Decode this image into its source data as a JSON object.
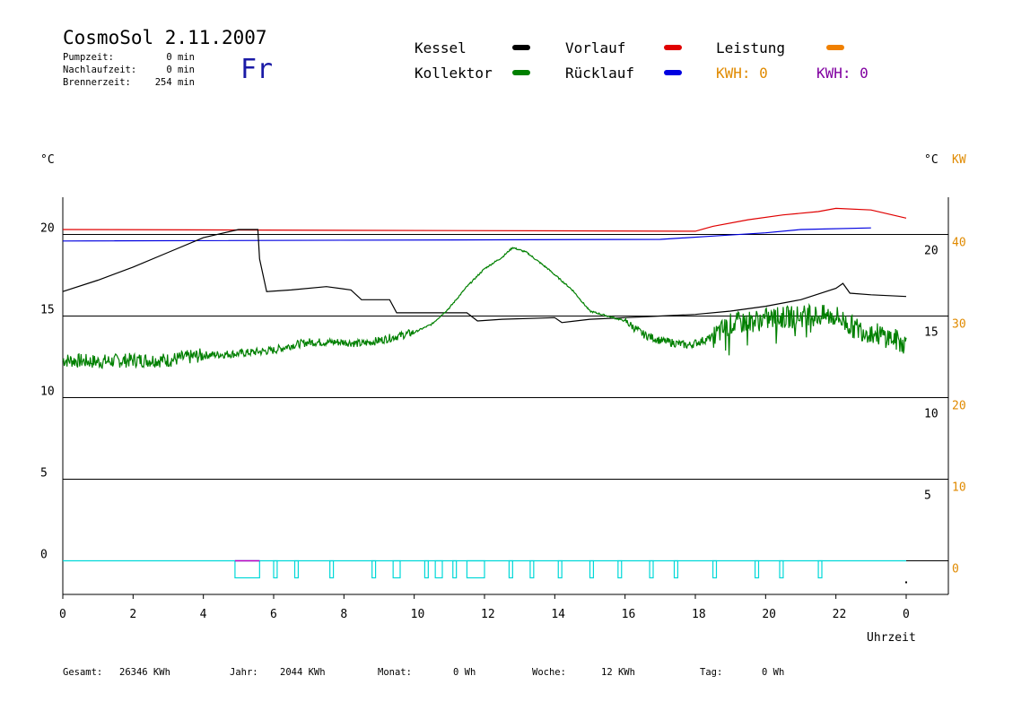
{
  "header": {
    "title": "CosmoSol 2.11.2007",
    "weekday": "Fr",
    "stats": [
      {
        "label": "Pumpzeit:",
        "value": "0 min"
      },
      {
        "label": "Nachlaufzeit:",
        "value": "0 min"
      },
      {
        "label": "Brennerzeit:",
        "value": "254 min"
      }
    ]
  },
  "legend": {
    "items": [
      {
        "label": "Kessel",
        "color": "#000000"
      },
      {
        "label": "Vorlauf",
        "color": "#e00000"
      },
      {
        "label": "Leistung",
        "color": "#f08000"
      },
      {
        "label": "Kollektor",
        "color": "#008000"
      },
      {
        "label": "Rücklauf",
        "color": "#0000e0"
      }
    ],
    "kwh": [
      {
        "text": "KWH: 0",
        "color": "#e08a00"
      },
      {
        "text": "KWH: 0",
        "color": "#8000a0"
      }
    ]
  },
  "chart_data": {
    "type": "line",
    "left_axis_unit": "°C",
    "right_axis_unit": "°C",
    "right_axis2_unit": "KW",
    "xlabel": "Uhrzeit",
    "x_ticks": [
      "0",
      "2",
      "4",
      "6",
      "8",
      "10",
      "12",
      "14",
      "16",
      "18",
      "20",
      "22",
      "0"
    ],
    "xlim": [
      0,
      24
    ],
    "ylim": [
      -2,
      22.5
    ],
    "left_ticks": [
      "0",
      "5",
      "10",
      "15",
      "20"
    ],
    "inner_right_ticks": [
      "5",
      "10",
      "15",
      "20"
    ],
    "kw_ticks": [
      "0",
      "10",
      "20",
      "30",
      "40"
    ],
    "kw_color": "#e08a00",
    "series": [
      {
        "name": "Vorlauf",
        "color": "#e00000",
        "points": [
          [
            0,
            20.3
          ],
          [
            18,
            20.2
          ],
          [
            18.5,
            20.5
          ],
          [
            19.5,
            20.9
          ],
          [
            20.5,
            21.2
          ],
          [
            21.5,
            21.4
          ],
          [
            22,
            21.6
          ],
          [
            23,
            21.5
          ],
          [
            24,
            21.0
          ]
        ]
      },
      {
        "name": "Rücklauf",
        "color": "#0000e0",
        "points": [
          [
            0,
            19.6
          ],
          [
            17,
            19.7
          ],
          [
            18.5,
            19.9
          ],
          [
            20,
            20.1
          ],
          [
            21,
            20.3
          ],
          [
            23,
            20.4
          ]
        ]
      },
      {
        "name": "Kessel",
        "color": "#000000",
        "points": [
          [
            0,
            16.5
          ],
          [
            1,
            17.2
          ],
          [
            2,
            18.0
          ],
          [
            3,
            18.9
          ],
          [
            4,
            19.8
          ],
          [
            5,
            20.3
          ],
          [
            5.55,
            20.3
          ],
          [
            5.6,
            18.5
          ],
          [
            5.8,
            16.5
          ],
          [
            6.5,
            16.6
          ],
          [
            7.5,
            16.8
          ],
          [
            8.2,
            16.6
          ],
          [
            8.5,
            16.0
          ],
          [
            9.3,
            16.0
          ],
          [
            9.5,
            15.2
          ],
          [
            11.5,
            15.2
          ],
          [
            11.8,
            14.7
          ],
          [
            12.5,
            14.8
          ],
          [
            14,
            14.9
          ],
          [
            14.2,
            14.6
          ],
          [
            15,
            14.8
          ],
          [
            16,
            14.9
          ],
          [
            17,
            15.0
          ],
          [
            18,
            15.1
          ],
          [
            19,
            15.3
          ],
          [
            20,
            15.6
          ],
          [
            21,
            16.0
          ],
          [
            22,
            16.7
          ],
          [
            22.2,
            17.0
          ],
          [
            22.4,
            16.4
          ],
          [
            23,
            16.3
          ],
          [
            24,
            16.2
          ]
        ]
      },
      {
        "name": "Kollektor",
        "color": "#008000",
        "points": [
          [
            0,
            12.3
          ],
          [
            1,
            12.2
          ],
          [
            2,
            12.3
          ],
          [
            3,
            12.3
          ],
          [
            4,
            12.6
          ],
          [
            5,
            12.7
          ],
          [
            6,
            12.9
          ],
          [
            6.5,
            13.2
          ],
          [
            7,
            13.4
          ],
          [
            8,
            13.4
          ],
          [
            8.5,
            13.3
          ],
          [
            9,
            13.5
          ],
          [
            10,
            14.0
          ],
          [
            10.5,
            14.5
          ],
          [
            11,
            15.5
          ],
          [
            11.5,
            16.8
          ],
          [
            12,
            17.9
          ],
          [
            12.5,
            18.6
          ],
          [
            12.8,
            19.2
          ],
          [
            13.2,
            18.9
          ],
          [
            13.8,
            17.9
          ],
          [
            14.5,
            16.6
          ],
          [
            15,
            15.3
          ],
          [
            15.5,
            15.0
          ],
          [
            16,
            14.7
          ],
          [
            16.5,
            13.9
          ],
          [
            17,
            13.5
          ],
          [
            17.8,
            13.2
          ],
          [
            18.5,
            13.7
          ],
          [
            19,
            14.5
          ],
          [
            20,
            14.8
          ],
          [
            21,
            15.0
          ],
          [
            22,
            15.0
          ],
          [
            22.5,
            14.3
          ],
          [
            23,
            14.0
          ],
          [
            23.5,
            13.7
          ],
          [
            24,
            13.3
          ]
        ]
      }
    ],
    "pump_pulses": {
      "color": "#00d8d8",
      "start_color": "#c000c0",
      "intervals": [
        [
          4.9,
          5.6
        ],
        [
          6.0,
          6.1
        ],
        [
          6.6,
          6.7
        ],
        [
          7.6,
          7.7
        ],
        [
          8.8,
          8.9
        ],
        [
          9.4,
          9.6
        ],
        [
          10.3,
          10.4
        ],
        [
          10.6,
          10.8
        ],
        [
          11.1,
          11.2
        ],
        [
          11.5,
          12.0
        ],
        [
          12.7,
          12.8
        ],
        [
          13.3,
          13.4
        ],
        [
          14.1,
          14.2
        ],
        [
          15.0,
          15.1
        ],
        [
          15.8,
          15.9
        ],
        [
          16.7,
          16.8
        ],
        [
          17.4,
          17.5
        ],
        [
          18.5,
          18.6
        ],
        [
          19.7,
          19.8
        ],
        [
          20.4,
          20.5
        ],
        [
          21.5,
          21.6
        ]
      ]
    }
  },
  "footer": {
    "items": [
      {
        "label": "Gesamt:",
        "value": "26346 KWh"
      },
      {
        "label": "Jahr:",
        "value": "2044 KWh"
      },
      {
        "label": "Monat:",
        "value": "0 Wh"
      },
      {
        "label": "Woche:",
        "value": "12 KWh"
      },
      {
        "label": "Tag:",
        "value": "0 Wh"
      }
    ]
  }
}
